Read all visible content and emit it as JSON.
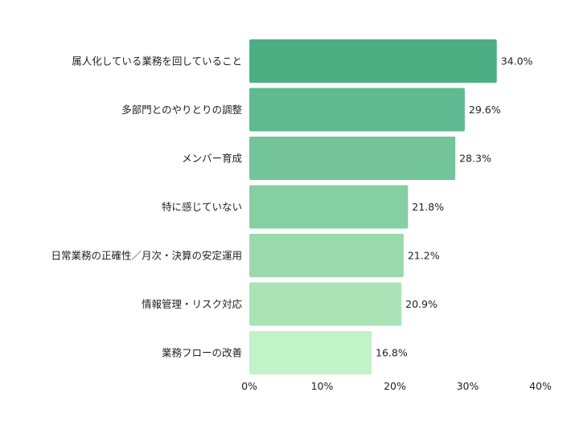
{
  "chart_data": {
    "type": "bar",
    "orientation": "horizontal",
    "categories": [
      "属人化している業務を回していること",
      "多部門とのやりとりの調整",
      "メンバー育成",
      "特に感じていない",
      "日常業務の正確性／月次・決算の安定運用",
      "情報管理・リスク対応",
      "業務フローの改善"
    ],
    "values": [
      34.0,
      29.6,
      28.3,
      21.8,
      21.2,
      20.9,
      16.8
    ],
    "value_labels": [
      "34.0%",
      "29.6%",
      "28.3%",
      "21.8%",
      "21.2%",
      "20.9%",
      "16.8%"
    ],
    "bar_colors": [
      "#4caf84",
      "#5fba91",
      "#73c49b",
      "#86cfa3",
      "#99d9ab",
      "#abe3b6",
      "#c2f2c8"
    ],
    "xlim": [
      0,
      40
    ],
    "x_ticks": [
      0,
      10,
      20,
      30,
      40
    ],
    "x_tick_labels": [
      "0%",
      "10%",
      "20%",
      "30%",
      "40%"
    ],
    "grid": false,
    "legend": "none",
    "title": "",
    "xlabel": "",
    "ylabel": ""
  }
}
